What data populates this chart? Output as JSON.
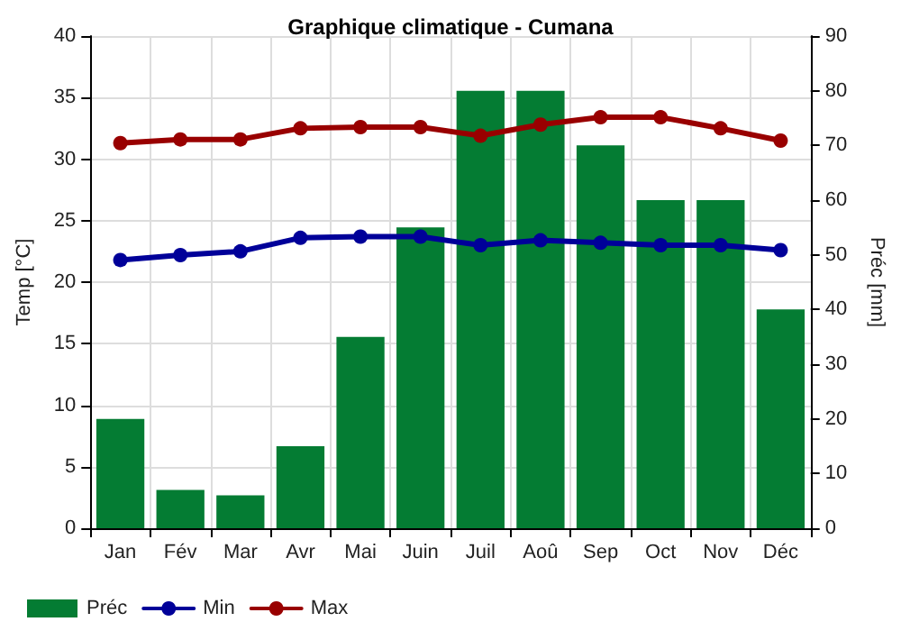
{
  "chart_data": {
    "type": "bar",
    "title": "Graphique climatique - Cumana",
    "ylabel": "Temp [°C]",
    "y2label": "Préc [mm]",
    "categories": [
      "Jan",
      "Fév",
      "Mar",
      "Avr",
      "Mai",
      "Juin",
      "Juil",
      "Aoû",
      "Sep",
      "Oct",
      "Nov",
      "Déc"
    ],
    "series": [
      {
        "name": "Préc",
        "axis": "y2",
        "color": "#047c33",
        "values": [
          20,
          7,
          6,
          15,
          35,
          55,
          80,
          80,
          70,
          60,
          60,
          40
        ]
      },
      {
        "name": "Min",
        "type": "line",
        "color": "#000099",
        "values": [
          21.8,
          22.2,
          22.5,
          23.6,
          23.7,
          23.7,
          23.0,
          23.4,
          23.2,
          23.0,
          23.0,
          22.6
        ]
      },
      {
        "name": "Max",
        "type": "line",
        "color": "#990000",
        "values": [
          31.3,
          31.6,
          31.6,
          32.5,
          32.6,
          32.6,
          31.9,
          32.8,
          33.4,
          33.4,
          32.5,
          31.5
        ]
      }
    ],
    "ylim": [
      0,
      40
    ],
    "yticks": [
      0,
      5,
      10,
      15,
      20,
      25,
      30,
      35,
      40
    ],
    "y2lim": [
      0,
      90
    ],
    "y2ticks": [
      0,
      10,
      20,
      30,
      40,
      50,
      60,
      70,
      80,
      90
    ],
    "grid": true,
    "legend": "bottom left",
    "marker": "circle",
    "line_style": "solid"
  }
}
